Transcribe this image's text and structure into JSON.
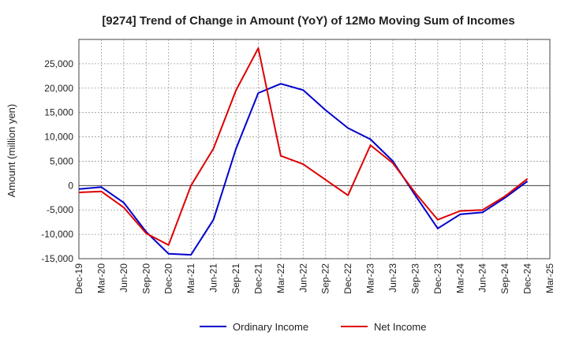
{
  "chart_data": {
    "type": "line",
    "title": "[9274]  Trend of Change in Amount (YoY) of 12Mo Moving Sum of Incomes",
    "xlabel": "",
    "ylabel": "Amount (million yen)",
    "ylim": [
      -15000,
      30000
    ],
    "yticks": [
      -15000,
      -10000,
      -5000,
      0,
      5000,
      10000,
      15000,
      20000,
      25000
    ],
    "ytick_labels": [
      "-15,000",
      "-10,000",
      "-5,000",
      "0",
      "5,000",
      "10,000",
      "15,000",
      "20,000",
      "25,000"
    ],
    "categories": [
      "Dec-19",
      "Mar-20",
      "Jun-20",
      "Sep-20",
      "Dec-20",
      "Mar-21",
      "Jun-21",
      "Sep-21",
      "Dec-21",
      "Mar-22",
      "Jun-22",
      "Sep-22",
      "Dec-22",
      "Mar-23",
      "Jun-23",
      "Sep-23",
      "Dec-23",
      "Mar-24",
      "Jun-24",
      "Sep-24",
      "Dec-24",
      "Mar-25"
    ],
    "grid": true,
    "legend_position": "bottom",
    "series": [
      {
        "name": "Ordinary Income",
        "color": "#0000cc",
        "values": [
          -700,
          -300,
          -3500,
          -9500,
          -14000,
          -14200,
          -7000,
          7500,
          19000,
          20900,
          19600,
          15500,
          11800,
          9500,
          5000,
          -2000,
          -8800,
          -5900,
          -5500,
          -2500,
          900,
          null
        ]
      },
      {
        "name": "Net Income",
        "color": "#dd0000",
        "values": [
          -1400,
          -1200,
          -4500,
          -9800,
          -12200,
          0,
          7600,
          19500,
          28200,
          6100,
          4400,
          1200,
          -2000,
          8300,
          4600,
          -1500,
          -7000,
          -5200,
          -5000,
          -2200,
          1400,
          null
        ]
      }
    ]
  }
}
